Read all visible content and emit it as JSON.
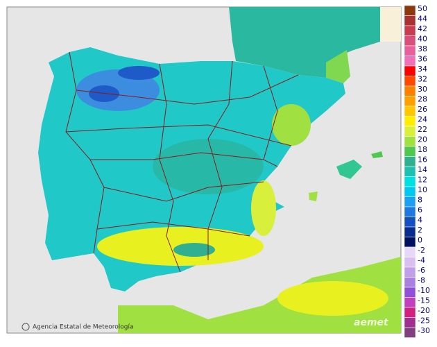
{
  "legend": {
    "entries": [
      {
        "value": 50,
        "color": "#8b3a10"
      },
      {
        "value": 44,
        "color": "#a83232"
      },
      {
        "value": 42,
        "color": "#c83c50"
      },
      {
        "value": 40,
        "color": "#d8507a"
      },
      {
        "value": 38,
        "color": "#e8609a"
      },
      {
        "value": 36,
        "color": "#f070b8"
      },
      {
        "value": 34,
        "color": "#ff0000"
      },
      {
        "value": 32,
        "color": "#ff4800"
      },
      {
        "value": 30,
        "color": "#ff7f00"
      },
      {
        "value": 28,
        "color": "#ffa000"
      },
      {
        "value": 26,
        "color": "#ffc800"
      },
      {
        "value": 24,
        "color": "#ffee00"
      },
      {
        "value": 22,
        "color": "#d8f03c"
      },
      {
        "value": 20,
        "color": "#a0e040"
      },
      {
        "value": 18,
        "color": "#50c850"
      },
      {
        "value": 16,
        "color": "#30b090"
      },
      {
        "value": 14,
        "color": "#20c0b0"
      },
      {
        "value": 12,
        "color": "#00e0e0"
      },
      {
        "value": 10,
        "color": "#00c8f0"
      },
      {
        "value": 8,
        "color": "#1ea0f0"
      },
      {
        "value": 6,
        "color": "#1e78e0"
      },
      {
        "value": 4,
        "color": "#1450c0"
      },
      {
        "value": 2,
        "color": "#0a2c90"
      },
      {
        "value": 0,
        "color": "#001060"
      },
      {
        "value": -2,
        "color": "#e8d8f8"
      },
      {
        "value": -4,
        "color": "#d8c0f0"
      },
      {
        "value": -6,
        "color": "#c0a0e8"
      },
      {
        "value": -8,
        "color": "#a880e0"
      },
      {
        "value": -10,
        "color": "#9050d8"
      },
      {
        "value": -15,
        "color": "#c040c0"
      },
      {
        "value": -20,
        "color": "#d02080"
      },
      {
        "value": -25,
        "color": "#a03090"
      },
      {
        "value": -30,
        "color": "#804080"
      }
    ]
  },
  "credit": "Agencia Estatal de Meteorología",
  "logo": "aemet"
}
